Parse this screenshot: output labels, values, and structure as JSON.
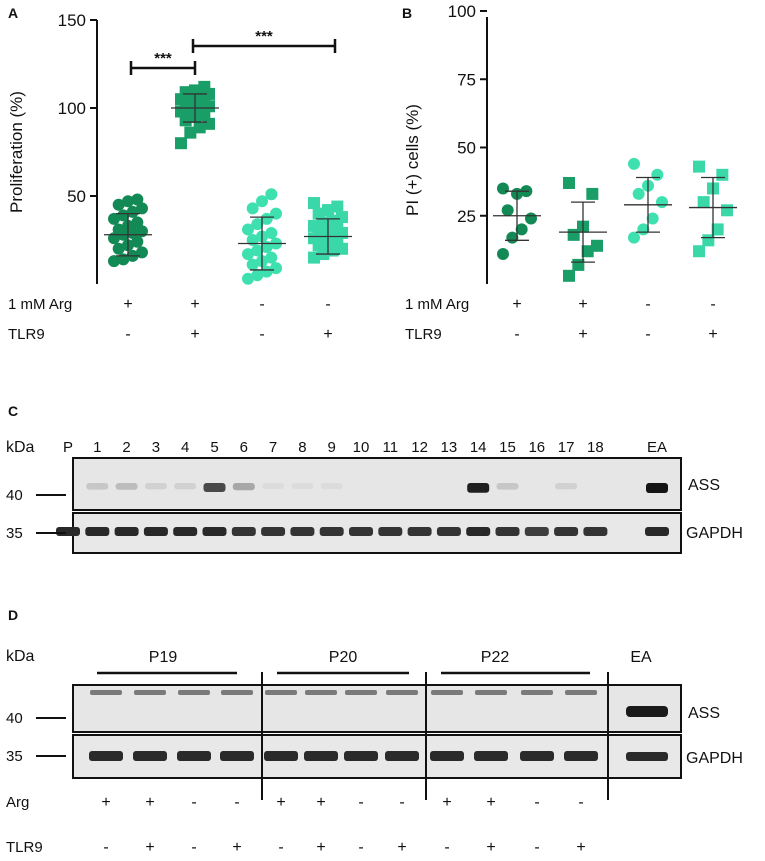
{
  "colors": {
    "dark_green": "#138a55",
    "mid_green": "#1a9e68",
    "light_teal": "#3fe0b0",
    "teal": "#3ad8a8",
    "axis": "#111111",
    "blot_bg": "#e6e6e6"
  },
  "chart_data": [
    {
      "panel": "A",
      "type": "scatter",
      "ylabel": "Proliferation (%)",
      "ylim": [
        0,
        150
      ],
      "yticks": [
        "50",
        "100",
        "150"
      ],
      "conditions": {
        "row1_label": "1 mM Arg",
        "row2_label": "TLR9",
        "row1": [
          "+",
          "+",
          "-",
          "-"
        ],
        "row2": [
          "-",
          "+",
          "-",
          "+"
        ]
      },
      "significance": [
        {
          "label": "***",
          "from_group": 0,
          "to_group": 1
        },
        {
          "label": "***",
          "from_group": 1,
          "to_group": 3
        }
      ],
      "groups": [
        {
          "marker": "circle",
          "color": "#138a55",
          "mean": 28,
          "sd": 12,
          "values": [
            13,
            14,
            16,
            18,
            20,
            22,
            24,
            26,
            28,
            29,
            30,
            31,
            33,
            35,
            37,
            39,
            41,
            43,
            45,
            47,
            48
          ]
        },
        {
          "marker": "square",
          "color": "#1a9e68",
          "mean": 100,
          "sd": 8,
          "values": [
            80,
            86,
            89,
            91,
            93,
            95,
            96,
            98,
            99,
            100,
            101,
            102,
            103,
            104,
            105,
            106,
            107,
            108,
            109,
            110,
            112
          ]
        },
        {
          "marker": "circle",
          "color": "#3fe0b0",
          "mean": 23,
          "sd": 15,
          "values": [
            3,
            5,
            7,
            9,
            11,
            13,
            15,
            17,
            19,
            21,
            23,
            25,
            27,
            29,
            31,
            34,
            37,
            40,
            43,
            47,
            51
          ]
        },
        {
          "marker": "square",
          "color": "#3ad8a8",
          "mean": 27,
          "sd": 10,
          "values": [
            15,
            17,
            19,
            20,
            22,
            23,
            25,
            26,
            27,
            28,
            29,
            30,
            31,
            32,
            33,
            35,
            36,
            38,
            40,
            42,
            44,
            46
          ]
        }
      ]
    },
    {
      "panel": "B",
      "type": "scatter",
      "ylabel": "PI (+) cells (%)",
      "ylim": [
        0,
        100
      ],
      "yticks": [
        "25",
        "50",
        "75",
        "100"
      ],
      "conditions": {
        "row1_label": "1 mM Arg",
        "row2_label": "TLR9",
        "row1": [
          "+",
          "+",
          "-",
          "-"
        ],
        "row2": [
          "-",
          "+",
          "-",
          "+"
        ]
      },
      "groups": [
        {
          "marker": "circle",
          "color": "#138a55",
          "mean": 25,
          "sd": 9,
          "values": [
            11,
            17,
            20,
            24,
            27,
            33,
            34,
            35
          ]
        },
        {
          "marker": "square",
          "color": "#1a9e68",
          "mean": 19,
          "sd": 11,
          "values": [
            3,
            7,
            12,
            14,
            18,
            21,
            33,
            37
          ]
        },
        {
          "marker": "circle",
          "color": "#3fe0b0",
          "mean": 29,
          "sd": 10,
          "values": [
            17,
            20,
            24,
            30,
            33,
            36,
            40,
            44
          ]
        },
        {
          "marker": "square",
          "color": "#3ad8a8",
          "mean": 28,
          "sd": 11,
          "values": [
            12,
            16,
            20,
            27,
            30,
            35,
            40,
            43
          ]
        }
      ]
    }
  ],
  "panel_c": {
    "letter": "C",
    "kda_label": "kDa",
    "lanes": [
      "P",
      "1",
      "2",
      "3",
      "4",
      "5",
      "6",
      "7",
      "8",
      "9",
      "10",
      "11",
      "12",
      "13",
      "14",
      "15",
      "16",
      "17",
      "18",
      "EA"
    ],
    "marker_40": "40",
    "marker_35": "35",
    "ass_label": "ASS",
    "gapdh_label": "GAPDH",
    "ass_intensity": [
      0,
      0.15,
      0.2,
      0.1,
      0.1,
      0.75,
      0.3,
      0.05,
      0.05,
      0.05,
      0,
      0,
      0,
      0,
      0.95,
      0.15,
      0,
      0.1,
      0,
      1
    ],
    "gapdh_intensity": [
      0.9,
      0.9,
      0.9,
      0.9,
      0.9,
      0.9,
      0.85,
      0.85,
      0.85,
      0.85,
      0.85,
      0.85,
      0.85,
      0.85,
      0.9,
      0.85,
      0.8,
      0.85,
      0.85,
      0.9
    ]
  },
  "panel_d": {
    "letter": "D",
    "kda_label": "kDa",
    "groups": [
      "P19",
      "P20",
      "P22"
    ],
    "ea_label": "EA",
    "marker_40": "40",
    "marker_35": "35",
    "ass_label": "ASS",
    "gapdh_label": "GAPDH",
    "row1_label": "Arg",
    "row2_label": "TLR9",
    "row1": [
      "+",
      "+",
      "-",
      "-",
      "+",
      "+",
      "-",
      "-",
      "+",
      "+",
      "-",
      "-"
    ],
    "row2": [
      "-",
      "+",
      "-",
      "+",
      "-",
      "+",
      "-",
      "+",
      "-",
      "+",
      "-",
      "+"
    ]
  }
}
